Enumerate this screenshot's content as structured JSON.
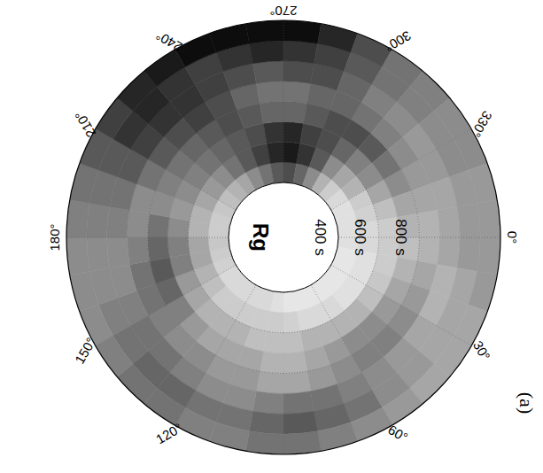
{
  "chart_data": {
    "type": "polar_heatmap",
    "title": "Rg",
    "annotation": "(a)",
    "color": "gray",
    "grid": true,
    "theta_lim": [
      0,
      360
    ],
    "theta_ticks": [
      {
        "value": 0,
        "label": "0°"
      },
      {
        "value": 30,
        "label": "30°"
      },
      {
        "value": 60,
        "label": "60°"
      },
      {
        "value": 120,
        "label": "120°"
      },
      {
        "value": 150,
        "label": "150°"
      },
      {
        "value": 180,
        "label": "180°"
      },
      {
        "value": 210,
        "label": "210°"
      },
      {
        "value": 240,
        "label": "240°"
      },
      {
        "value": 270,
        "label": "270°"
      },
      {
        "value": 300,
        "label": "300°"
      },
      {
        "value": 330,
        "label": "330°"
      }
    ],
    "rlim": [
      400,
      1200
    ],
    "rticks": [
      {
        "value": 400,
        "label": "400 s"
      },
      {
        "value": 600,
        "label": "600 s"
      },
      {
        "value": 800,
        "label": "800 s"
      }
    ],
    "theta_bins": [
      0,
      10,
      20,
      30,
      40,
      50,
      60,
      70,
      80,
      90,
      100,
      110,
      120,
      130,
      140,
      150,
      160,
      170,
      180,
      190,
      200,
      210,
      220,
      230,
      240,
      250,
      260,
      270,
      280,
      290,
      300,
      310,
      320,
      330,
      340,
      350,
      360
    ],
    "r_bins": [
      400,
      500,
      600,
      700,
      800,
      900,
      1000,
      1100,
      1200
    ],
    "zlim": [
      0,
      1
    ],
    "cells": [
      [
        0.12,
        0.1,
        0.1,
        0.1,
        0.1,
        0.1,
        0.1,
        0.1,
        0.1,
        0.12,
        0.15,
        0.15,
        0.15,
        0.15,
        0.15,
        0.18,
        0.2,
        0.22,
        0.2,
        0.2,
        0.22,
        0.25,
        0.3,
        0.35,
        0.45,
        0.55,
        0.65,
        0.7,
        0.6,
        0.45,
        0.3,
        0.2,
        0.15,
        0.12,
        0.12,
        0.12
      ],
      [
        0.15,
        0.12,
        0.12,
        0.12,
        0.12,
        0.15,
        0.15,
        0.15,
        0.18,
        0.2,
        0.2,
        0.2,
        0.2,
        0.2,
        0.25,
        0.3,
        0.35,
        0.35,
        0.3,
        0.3,
        0.35,
        0.4,
        0.45,
        0.55,
        0.65,
        0.75,
        0.85,
        0.9,
        0.8,
        0.65,
        0.45,
        0.35,
        0.3,
        0.2,
        0.18,
        0.15
      ],
      [
        0.2,
        0.2,
        0.22,
        0.25,
        0.3,
        0.3,
        0.3,
        0.3,
        0.25,
        0.25,
        0.25,
        0.3,
        0.3,
        0.3,
        0.35,
        0.4,
        0.5,
        0.5,
        0.45,
        0.4,
        0.45,
        0.5,
        0.55,
        0.6,
        0.65,
        0.7,
        0.8,
        0.85,
        0.75,
        0.7,
        0.6,
        0.5,
        0.45,
        0.35,
        0.25,
        0.2
      ],
      [
        0.25,
        0.3,
        0.35,
        0.4,
        0.45,
        0.45,
        0.4,
        0.35,
        0.3,
        0.3,
        0.35,
        0.35,
        0.35,
        0.4,
        0.5,
        0.6,
        0.65,
        0.6,
        0.55,
        0.45,
        0.5,
        0.55,
        0.6,
        0.65,
        0.7,
        0.65,
        0.6,
        0.6,
        0.65,
        0.7,
        0.7,
        0.65,
        0.55,
        0.45,
        0.35,
        0.3
      ],
      [
        0.3,
        0.35,
        0.4,
        0.45,
        0.5,
        0.5,
        0.45,
        0.4,
        0.35,
        0.35,
        0.4,
        0.4,
        0.45,
        0.45,
        0.5,
        0.55,
        0.55,
        0.5,
        0.45,
        0.45,
        0.55,
        0.65,
        0.7,
        0.75,
        0.7,
        0.6,
        0.55,
        0.55,
        0.6,
        0.6,
        0.55,
        0.5,
        0.45,
        0.4,
        0.35,
        0.3
      ],
      [
        0.35,
        0.3,
        0.3,
        0.35,
        0.4,
        0.45,
        0.5,
        0.55,
        0.55,
        0.5,
        0.45,
        0.45,
        0.5,
        0.55,
        0.55,
        0.5,
        0.45,
        0.45,
        0.5,
        0.55,
        0.65,
        0.75,
        0.8,
        0.8,
        0.75,
        0.7,
        0.65,
        0.7,
        0.7,
        0.6,
        0.5,
        0.45,
        0.4,
        0.4,
        0.35,
        0.35
      ],
      [
        0.4,
        0.35,
        0.35,
        0.35,
        0.4,
        0.45,
        0.55,
        0.6,
        0.65,
        0.6,
        0.55,
        0.55,
        0.6,
        0.6,
        0.55,
        0.5,
        0.45,
        0.45,
        0.5,
        0.55,
        0.65,
        0.8,
        0.85,
        0.8,
        0.75,
        0.8,
        0.85,
        0.8,
        0.75,
        0.65,
        0.55,
        0.5,
        0.45,
        0.45,
        0.4,
        0.4
      ],
      [
        0.4,
        0.4,
        0.35,
        0.35,
        0.35,
        0.4,
        0.45,
        0.5,
        0.55,
        0.55,
        0.5,
        0.5,
        0.55,
        0.55,
        0.5,
        0.45,
        0.45,
        0.45,
        0.5,
        0.55,
        0.65,
        0.75,
        0.85,
        0.9,
        0.95,
        0.95,
        0.95,
        0.95,
        0.85,
        0.7,
        0.55,
        0.5,
        0.45,
        0.45,
        0.4,
        0.4
      ]
    ]
  }
}
